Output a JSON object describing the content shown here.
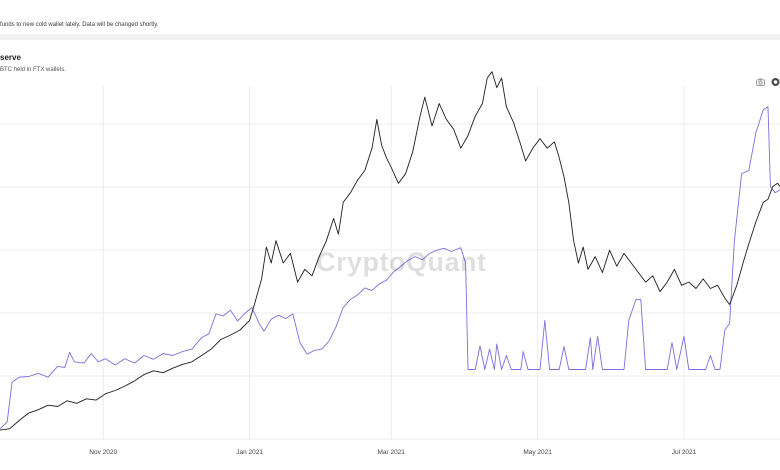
{
  "notice": {
    "text": "funds to new cold wallet lately. Data will be changed shortly."
  },
  "chart_header": {
    "title": "serve",
    "subtitle": "BTC held in FTX wallets."
  },
  "toolbar": {
    "camera_icon": "camera-icon",
    "more_icon": "more-icon"
  },
  "watermark": "CryptoQuant",
  "chart_data": {
    "type": "line",
    "xlim": [
      "2020-09-19",
      "2021-08-10"
    ],
    "x_ticks": [
      {
        "label": "Nov 2020",
        "date": "2020-11-01"
      },
      {
        "label": "Jan 2021",
        "date": "2021-01-01"
      },
      {
        "label": "Mar 2021",
        "date": "2021-03-01"
      },
      {
        "label": "May 2021",
        "date": "2021-05-01"
      },
      {
        "label": "Jul 2021",
        "date": "2021-07-01"
      }
    ],
    "y_gridlines": 6,
    "grid": true,
    "colors": {
      "series_a": "#7b6fdf",
      "series_b": "#1e1e1e"
    },
    "series": [
      {
        "key": "a",
        "points": [
          [
            "2020-09-19",
            0.5
          ],
          [
            "2020-09-22",
            1.6
          ],
          [
            "2020-09-24",
            7.8
          ],
          [
            "2020-09-27",
            8.6
          ],
          [
            "2020-10-01",
            8.7
          ],
          [
            "2020-10-05",
            9.2
          ],
          [
            "2020-10-09",
            8.6
          ],
          [
            "2020-10-13",
            10.3
          ],
          [
            "2020-10-16",
            10.1
          ],
          [
            "2020-10-18",
            12.5
          ],
          [
            "2020-10-20",
            11.0
          ],
          [
            "2020-10-24",
            10.8
          ],
          [
            "2020-10-27",
            12.3
          ],
          [
            "2020-10-30",
            11.0
          ],
          [
            "2020-11-02",
            11.5
          ],
          [
            "2020-11-06",
            10.5
          ],
          [
            "2020-11-10",
            11.5
          ],
          [
            "2020-11-14",
            10.8
          ],
          [
            "2020-11-18",
            12.0
          ],
          [
            "2020-11-22",
            11.4
          ],
          [
            "2020-11-26",
            12.3
          ],
          [
            "2020-11-30",
            12.0
          ],
          [
            "2020-12-04",
            12.6
          ],
          [
            "2020-12-08",
            13.0
          ],
          [
            "2020-12-12",
            14.8
          ],
          [
            "2020-12-15",
            15.4
          ],
          [
            "2020-12-18",
            18.5
          ],
          [
            "2020-12-21",
            18.2
          ],
          [
            "2020-12-24",
            19.1
          ],
          [
            "2020-12-27",
            17.4
          ],
          [
            "2020-12-30",
            18.6
          ],
          [
            "2021-01-02",
            19.5
          ],
          [
            "2021-01-05",
            17.0
          ],
          [
            "2021-01-07",
            15.8
          ],
          [
            "2021-01-10",
            17.7
          ],
          [
            "2021-01-13",
            18.3
          ],
          [
            "2021-01-16",
            17.8
          ],
          [
            "2021-01-19",
            18.5
          ],
          [
            "2021-01-22",
            14.0
          ],
          [
            "2021-01-25",
            12.2
          ],
          [
            "2021-01-28",
            12.8
          ],
          [
            "2021-01-31",
            13.0
          ],
          [
            "2021-02-03",
            14.2
          ],
          [
            "2021-02-06",
            16.5
          ],
          [
            "2021-02-09",
            19.5
          ],
          [
            "2021-02-12",
            20.8
          ],
          [
            "2021-02-15",
            21.5
          ],
          [
            "2021-02-18",
            22.6
          ],
          [
            "2021-02-21",
            22.2
          ],
          [
            "2021-02-24",
            23.2
          ],
          [
            "2021-02-27",
            23.8
          ],
          [
            "2021-03-02",
            25.1
          ],
          [
            "2021-03-05",
            26.0
          ],
          [
            "2021-03-08",
            26.9
          ],
          [
            "2021-03-11",
            27.5
          ],
          [
            "2021-03-14",
            27.0
          ],
          [
            "2021-03-17",
            28.0
          ],
          [
            "2021-03-20",
            28.5
          ],
          [
            "2021-03-23",
            28.8
          ],
          [
            "2021-03-26",
            28.3
          ],
          [
            "2021-03-30",
            28.9
          ],
          [
            "2021-04-01",
            26.5
          ],
          [
            "2021-04-02",
            9.8
          ],
          [
            "2021-04-05",
            9.8
          ],
          [
            "2021-04-07",
            13.5
          ],
          [
            "2021-04-09",
            9.8
          ],
          [
            "2021-04-11",
            13.0
          ],
          [
            "2021-04-13",
            9.8
          ],
          [
            "2021-04-14",
            13.8
          ],
          [
            "2021-04-16",
            9.8
          ],
          [
            "2021-04-18",
            12.0
          ],
          [
            "2021-04-20",
            9.8
          ],
          [
            "2021-04-24",
            9.8
          ],
          [
            "2021-04-25",
            12.6
          ],
          [
            "2021-04-27",
            9.8
          ],
          [
            "2021-05-02",
            9.8
          ],
          [
            "2021-05-04",
            17.5
          ],
          [
            "2021-05-06",
            9.8
          ],
          [
            "2021-05-10",
            9.8
          ],
          [
            "2021-05-12",
            13.4
          ],
          [
            "2021-05-14",
            9.8
          ],
          [
            "2021-05-21",
            9.8
          ],
          [
            "2021-05-23",
            14.8
          ],
          [
            "2021-05-24",
            9.8
          ],
          [
            "2021-05-26",
            15.0
          ],
          [
            "2021-05-28",
            9.8
          ],
          [
            "2021-06-06",
            9.8
          ],
          [
            "2021-06-08",
            17.5
          ],
          [
            "2021-06-11",
            20.8
          ],
          [
            "2021-06-13",
            20.8
          ],
          [
            "2021-06-15",
            9.8
          ],
          [
            "2021-06-24",
            9.8
          ],
          [
            "2021-06-26",
            14.0
          ],
          [
            "2021-06-28",
            9.8
          ],
          [
            "2021-07-01",
            15.0
          ],
          [
            "2021-07-03",
            9.8
          ],
          [
            "2021-07-10",
            9.8
          ],
          [
            "2021-07-12",
            12.0
          ],
          [
            "2021-07-14",
            9.8
          ],
          [
            "2021-07-16",
            9.8
          ],
          [
            "2021-07-18",
            16.0
          ],
          [
            "2021-07-20",
            17.0
          ],
          [
            "2021-07-22",
            30.0
          ],
          [
            "2021-07-25",
            40.5
          ],
          [
            "2021-07-28",
            41.0
          ],
          [
            "2021-07-31",
            47.0
          ],
          [
            "2021-08-03",
            50.5
          ],
          [
            "2021-08-05",
            51.0
          ],
          [
            "2021-08-06",
            38.5
          ],
          [
            "2021-08-08",
            37.5
          ],
          [
            "2021-08-10",
            38.0
          ]
        ]
      },
      {
        "key": "b",
        "points": [
          [
            "2020-09-19",
            0.3
          ],
          [
            "2020-09-23",
            0.5
          ],
          [
            "2020-09-27",
            1.8
          ],
          [
            "2020-10-01",
            3.0
          ],
          [
            "2020-10-05",
            3.5
          ],
          [
            "2020-10-09",
            4.2
          ],
          [
            "2020-10-13",
            4.0
          ],
          [
            "2020-10-17",
            4.9
          ],
          [
            "2020-10-21",
            4.5
          ],
          [
            "2020-10-25",
            5.2
          ],
          [
            "2020-10-29",
            5.0
          ],
          [
            "2020-11-02",
            6.0
          ],
          [
            "2020-11-06",
            6.5
          ],
          [
            "2020-11-10",
            7.2
          ],
          [
            "2020-11-14",
            8.0
          ],
          [
            "2020-11-18",
            9.0
          ],
          [
            "2020-11-22",
            9.6
          ],
          [
            "2020-11-26",
            9.3
          ],
          [
            "2020-11-30",
            10.0
          ],
          [
            "2020-12-04",
            10.6
          ],
          [
            "2020-12-08",
            11.0
          ],
          [
            "2020-12-12",
            12.0
          ],
          [
            "2020-12-16",
            13.0
          ],
          [
            "2020-12-20",
            14.5
          ],
          [
            "2020-12-24",
            15.2
          ],
          [
            "2020-12-28",
            16.0
          ],
          [
            "2021-01-01",
            17.5
          ],
          [
            "2021-01-03",
            20.0
          ],
          [
            "2021-01-06",
            24.0
          ],
          [
            "2021-01-08",
            29.0
          ],
          [
            "2021-01-10",
            26.5
          ],
          [
            "2021-01-12",
            30.0
          ],
          [
            "2021-01-15",
            26.5
          ],
          [
            "2021-01-18",
            28.0
          ],
          [
            "2021-01-21",
            23.5
          ],
          [
            "2021-01-24",
            25.5
          ],
          [
            "2021-01-27",
            24.5
          ],
          [
            "2021-01-30",
            27.5
          ],
          [
            "2021-02-02",
            30.0
          ],
          [
            "2021-02-05",
            33.5
          ],
          [
            "2021-02-07",
            31.0
          ],
          [
            "2021-02-09",
            36.0
          ],
          [
            "2021-02-12",
            37.5
          ],
          [
            "2021-02-15",
            39.5
          ],
          [
            "2021-02-18",
            41.0
          ],
          [
            "2021-02-21",
            44.5
          ],
          [
            "2021-02-23",
            49.0
          ],
          [
            "2021-02-25",
            45.0
          ],
          [
            "2021-02-27",
            43.0
          ],
          [
            "2021-03-01",
            41.5
          ],
          [
            "2021-03-04",
            39.0
          ],
          [
            "2021-03-07",
            40.5
          ],
          [
            "2021-03-10",
            44.0
          ],
          [
            "2021-03-13",
            49.5
          ],
          [
            "2021-03-15",
            52.5
          ],
          [
            "2021-03-18",
            48.0
          ],
          [
            "2021-03-21",
            51.5
          ],
          [
            "2021-03-24",
            49.0
          ],
          [
            "2021-03-27",
            47.5
          ],
          [
            "2021-03-30",
            44.5
          ],
          [
            "2021-04-02",
            46.5
          ],
          [
            "2021-04-05",
            49.5
          ],
          [
            "2021-04-08",
            51.5
          ],
          [
            "2021-04-10",
            55.5
          ],
          [
            "2021-04-12",
            56.5
          ],
          [
            "2021-04-14",
            54.0
          ],
          [
            "2021-04-16",
            55.5
          ],
          [
            "2021-04-18",
            51.0
          ],
          [
            "2021-04-21",
            48.5
          ],
          [
            "2021-04-24",
            45.0
          ],
          [
            "2021-04-26",
            42.5
          ],
          [
            "2021-04-29",
            44.5
          ],
          [
            "2021-05-02",
            46.0
          ],
          [
            "2021-05-05",
            44.5
          ],
          [
            "2021-05-08",
            45.5
          ],
          [
            "2021-05-10",
            43.0
          ],
          [
            "2021-05-12",
            40.0
          ],
          [
            "2021-05-14",
            36.0
          ],
          [
            "2021-05-16",
            30.0
          ],
          [
            "2021-05-18",
            26.5
          ],
          [
            "2021-05-20",
            29.0
          ],
          [
            "2021-05-22",
            25.5
          ],
          [
            "2021-05-25",
            27.5
          ],
          [
            "2021-05-28",
            25.0
          ],
          [
            "2021-05-31",
            28.5
          ],
          [
            "2021-06-03",
            26.0
          ],
          [
            "2021-06-06",
            28.0
          ],
          [
            "2021-06-09",
            26.5
          ],
          [
            "2021-06-12",
            25.0
          ],
          [
            "2021-06-15",
            23.5
          ],
          [
            "2021-06-18",
            24.5
          ],
          [
            "2021-06-21",
            22.0
          ],
          [
            "2021-06-24",
            23.5
          ],
          [
            "2021-06-27",
            25.5
          ],
          [
            "2021-06-30",
            23.0
          ],
          [
            "2021-07-03",
            23.5
          ],
          [
            "2021-07-06",
            22.5
          ],
          [
            "2021-07-09",
            24.0
          ],
          [
            "2021-07-12",
            22.5
          ],
          [
            "2021-07-15",
            23.0
          ],
          [
            "2021-07-18",
            21.0
          ],
          [
            "2021-07-20",
            20.0
          ],
          [
            "2021-07-23",
            23.0
          ],
          [
            "2021-07-26",
            27.0
          ],
          [
            "2021-07-28",
            29.5
          ],
          [
            "2021-07-31",
            33.0
          ],
          [
            "2021-08-03",
            36.0
          ],
          [
            "2021-08-05",
            36.5
          ],
          [
            "2021-08-07",
            38.5
          ],
          [
            "2021-08-09",
            39.0
          ],
          [
            "2021-08-10",
            38.5
          ]
        ]
      }
    ]
  }
}
